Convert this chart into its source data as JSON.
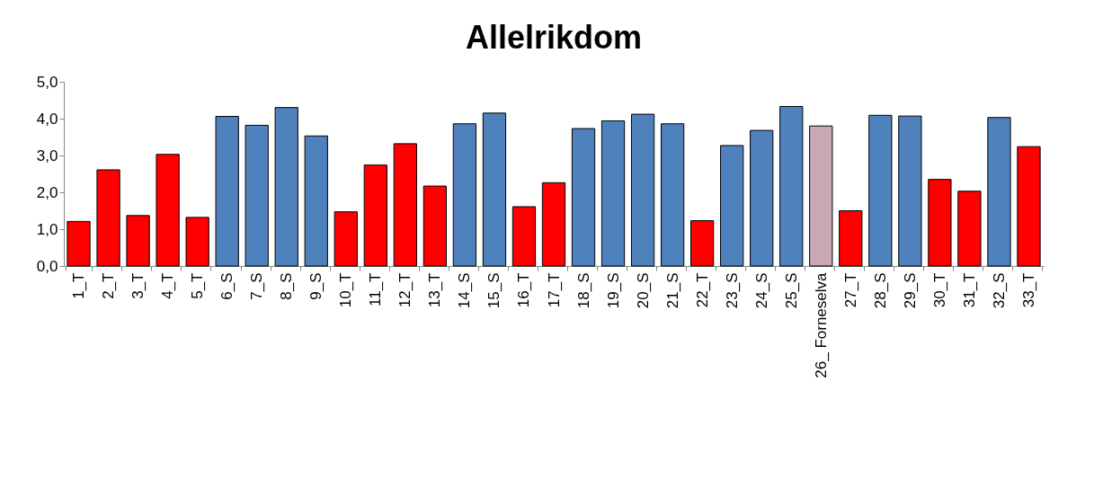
{
  "chart_data": {
    "type": "bar",
    "title": "Allelrikdom",
    "categories": [
      "1_T",
      "2_T",
      "3_T",
      "4_T",
      "5_T",
      "6_S",
      "7_S",
      "8_S",
      "9_S",
      "10_T",
      "11_T",
      "12_T",
      "13_T",
      "14_S",
      "15_S",
      "16_T",
      "17_T",
      "18_S",
      "19_S",
      "20_S",
      "21_S",
      "22_T",
      "23_S",
      "24_S",
      "25_S",
      "26_ Forneselva",
      "27_T",
      "28_S",
      "29_S",
      "30_T",
      "31_T",
      "32_S",
      "33_T"
    ],
    "values": [
      1.21,
      2.61,
      1.37,
      3.03,
      1.32,
      4.06,
      3.82,
      4.3,
      3.53,
      1.47,
      2.74,
      3.32,
      2.17,
      3.86,
      4.15,
      1.61,
      2.26,
      3.73,
      3.94,
      4.12,
      3.86,
      1.23,
      3.27,
      3.68,
      4.33,
      3.8,
      1.5,
      4.09,
      4.07,
      2.35,
      2.03,
      4.03,
      3.24
    ],
    "colors": [
      "#ff0000",
      "#ff0000",
      "#ff0000",
      "#ff0000",
      "#ff0000",
      "#4f81bd",
      "#4f81bd",
      "#4f81bd",
      "#4f81bd",
      "#ff0000",
      "#ff0000",
      "#ff0000",
      "#ff0000",
      "#4f81bd",
      "#4f81bd",
      "#ff0000",
      "#ff0000",
      "#4f81bd",
      "#4f81bd",
      "#4f81bd",
      "#4f81bd",
      "#ff0000",
      "#4f81bd",
      "#4f81bd",
      "#4f81bd",
      "#c9a7b4",
      "#ff0000",
      "#4f81bd",
      "#4f81bd",
      "#ff0000",
      "#ff0000",
      "#4f81bd",
      "#ff0000"
    ],
    "ylim": [
      0,
      5
    ],
    "yticks": [
      {
        "value": 0,
        "label": "0,0"
      },
      {
        "value": 1,
        "label": "1,0"
      },
      {
        "value": 2,
        "label": "2,0"
      },
      {
        "value": 3,
        "label": "3,0"
      },
      {
        "value": 4,
        "label": "4,0"
      },
      {
        "value": 5,
        "label": "5,0"
      }
    ],
    "grid": false
  }
}
